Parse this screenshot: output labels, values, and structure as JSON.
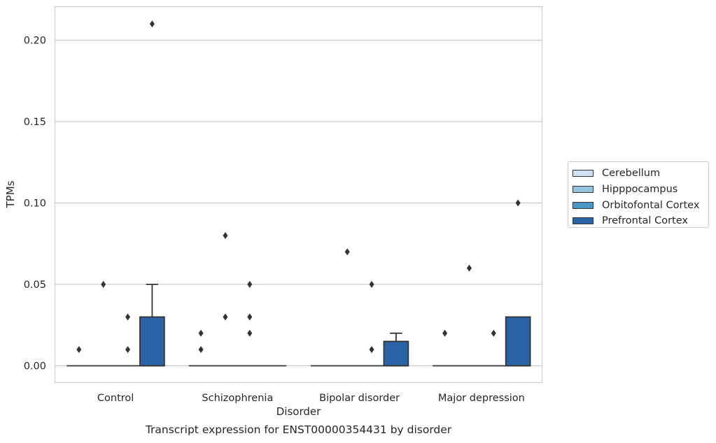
{
  "chart_data": {
    "type": "box",
    "xlabel": "Disorder",
    "ylabel": "TPMs",
    "caption": "Transcript expression for ENST00000354431 by disorder",
    "categories": [
      "Control",
      "Schizophrenia",
      "Bipolar disorder",
      "Major depression"
    ],
    "yticks": [
      "0.00",
      "0.05",
      "0.10",
      "0.15",
      "0.20"
    ],
    "ylim": [
      -0.01,
      0.22
    ],
    "grid": true,
    "legend_position": "right",
    "series": [
      {
        "name": "Cerebellum",
        "color": "#d0e1f2",
        "boxes": [
          {
            "q1": 0,
            "median": 0,
            "q3": 0,
            "whisker_low": 0,
            "whisker_high": 0,
            "outliers": [
              0.01
            ]
          },
          {
            "q1": 0,
            "median": 0,
            "q3": 0,
            "whisker_low": 0,
            "whisker_high": 0,
            "outliers": [
              0.01,
              0.02
            ]
          },
          {
            "q1": 0,
            "median": 0,
            "q3": 0,
            "whisker_low": 0,
            "whisker_high": 0,
            "outliers": []
          },
          {
            "q1": 0,
            "median": 0,
            "q3": 0,
            "whisker_low": 0,
            "whisker_high": 0,
            "outliers": [
              0.02
            ]
          }
        ]
      },
      {
        "name": "Hipppocampus",
        "color": "#94c4df",
        "boxes": [
          {
            "q1": 0,
            "median": 0,
            "q3": 0,
            "whisker_low": 0,
            "whisker_high": 0,
            "outliers": [
              0.05
            ]
          },
          {
            "q1": 0,
            "median": 0,
            "q3": 0,
            "whisker_low": 0,
            "whisker_high": 0,
            "outliers": [
              0.03,
              0.08
            ]
          },
          {
            "q1": 0,
            "median": 0,
            "q3": 0,
            "whisker_low": 0,
            "whisker_high": 0,
            "outliers": [
              0.07
            ]
          },
          {
            "q1": 0,
            "median": 0,
            "q3": 0,
            "whisker_low": 0,
            "whisker_high": 0,
            "outliers": [
              0.06
            ]
          }
        ]
      },
      {
        "name": "Orbitofontal Cortex",
        "color": "#4a98c9",
        "boxes": [
          {
            "q1": 0,
            "median": 0,
            "q3": 0,
            "whisker_low": 0,
            "whisker_high": 0,
            "outliers": [
              0.01,
              0.03
            ]
          },
          {
            "q1": 0,
            "median": 0,
            "q3": 0,
            "whisker_low": 0,
            "whisker_high": 0,
            "outliers": [
              0.02,
              0.03,
              0.05
            ]
          },
          {
            "q1": 0,
            "median": 0,
            "q3": 0,
            "whisker_low": 0,
            "whisker_high": 0,
            "outliers": [
              0.01,
              0.05
            ]
          },
          {
            "q1": 0,
            "median": 0,
            "q3": 0,
            "whisker_low": 0,
            "whisker_high": 0,
            "outliers": [
              0.02
            ]
          }
        ]
      },
      {
        "name": "Prefrontal Cortex",
        "color": "#2b64a6",
        "boxes": [
          {
            "q1": 0,
            "median": 0,
            "q3": 0.03,
            "whisker_low": 0,
            "whisker_high": 0.05,
            "outliers": [
              0.21
            ]
          },
          {
            "q1": 0,
            "median": 0,
            "q3": 0,
            "whisker_low": 0,
            "whisker_high": 0,
            "outliers": []
          },
          {
            "q1": 0,
            "median": 0,
            "q3": 0.015,
            "whisker_low": 0,
            "whisker_high": 0.02,
            "outliers": []
          },
          {
            "q1": 0,
            "median": 0,
            "q3": 0.03,
            "whisker_low": 0,
            "whisker_high": 0.03,
            "outliers": [
              0.1
            ]
          }
        ]
      }
    ]
  }
}
